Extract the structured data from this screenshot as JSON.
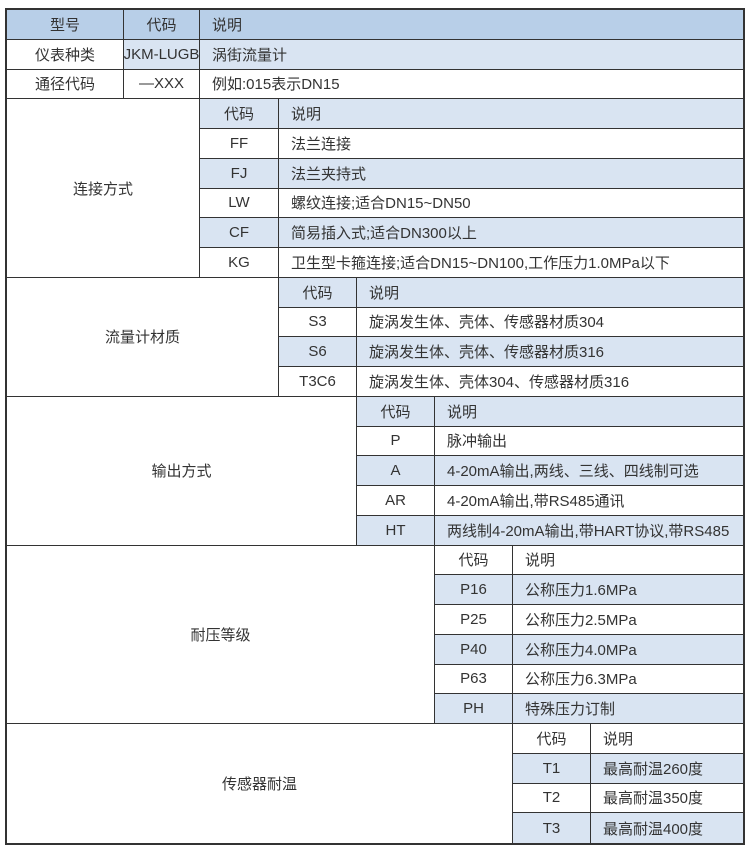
{
  "colors": {
    "header_blue": "#b8cfe8",
    "row_blue": "#d9e4f2",
    "border": "#333333",
    "text": "#333333"
  },
  "header": {
    "model": "型号",
    "code": "代码",
    "desc": "说明"
  },
  "model_rows": [
    {
      "label": "仪表种类",
      "code": "JKM-LUGB",
      "desc": "涡街流量计"
    },
    {
      "label": "通径代码",
      "code": "—XXX",
      "desc": "例如:015表示DN15"
    }
  ],
  "sections": [
    {
      "label": "连接方式",
      "code_header": "代码",
      "desc_header": "说明",
      "items": [
        {
          "code": "FF",
          "desc": "法兰连接"
        },
        {
          "code": "FJ",
          "desc": "法兰夹持式"
        },
        {
          "code": "LW",
          "desc": "螺纹连接;适合DN15~DN50"
        },
        {
          "code": "CF",
          "desc": "简易插入式;适合DN300以上"
        },
        {
          "code": "KG",
          "desc": "卫生型卡箍连接;适合DN15~DN100,工作压力1.0MPa以下"
        }
      ]
    },
    {
      "label": "流量计材质",
      "code_header": "代码",
      "desc_header": "说明",
      "items": [
        {
          "code": "S3",
          "desc": "旋涡发生体、壳体、传感器材质304"
        },
        {
          "code": "S6",
          "desc": "旋涡发生体、壳体、传感器材质316"
        },
        {
          "code": "T3C6",
          "desc": "旋涡发生体、壳体304、传感器材质316"
        }
      ]
    },
    {
      "label": "输出方式",
      "code_header": "代码",
      "desc_header": "说明",
      "items": [
        {
          "code": "P",
          "desc": "脉冲输出"
        },
        {
          "code": "A",
          "desc": "4-20mA输出,两线、三线、四线制可选"
        },
        {
          "code": "AR",
          "desc": "4-20mA输出,带RS485通讯"
        },
        {
          "code": "HT",
          "desc": "两线制4-20mA输出,带HART协议,带RS485"
        }
      ]
    },
    {
      "label": "耐压等级",
      "code_header": "代码",
      "desc_header": "说明",
      "items": [
        {
          "code": "P16",
          "desc": "公称压力1.6MPa"
        },
        {
          "code": "P25",
          "desc": "公称压力2.5MPa"
        },
        {
          "code": "P40",
          "desc": "公称压力4.0MPa"
        },
        {
          "code": "P63",
          "desc": "公称压力6.3MPa"
        },
        {
          "code": "PH",
          "desc": "特殊压力订制"
        }
      ]
    },
    {
      "label": "传感器耐温",
      "code_header": "代码",
      "desc_header": "说明",
      "items": [
        {
          "code": "T1",
          "desc": "最高耐温260度"
        },
        {
          "code": "T2",
          "desc": "最高耐温350度"
        },
        {
          "code": "T3",
          "desc": "最高耐温400度"
        }
      ]
    }
  ]
}
